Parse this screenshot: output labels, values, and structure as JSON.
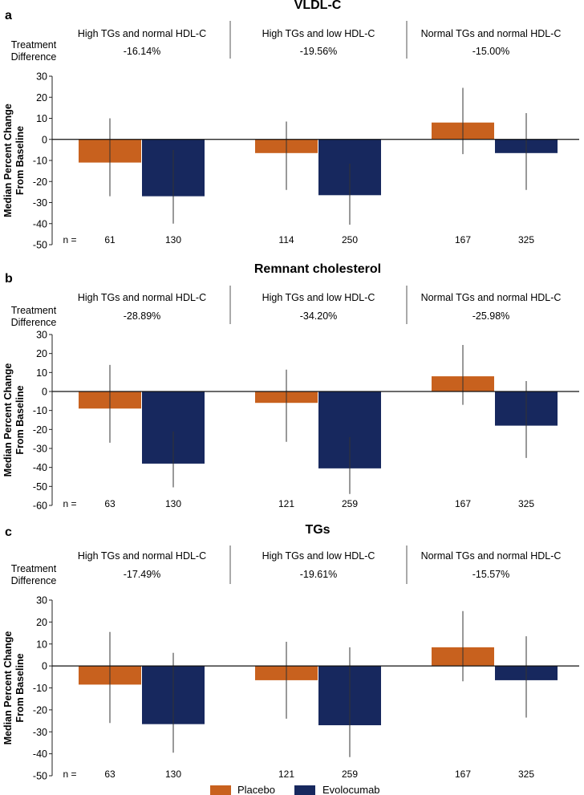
{
  "colors": {
    "placebo": "#C8611E",
    "evolocumab": "#17285E"
  },
  "legend": {
    "placebo": "Placebo",
    "evolocumab": "Evolocumab"
  },
  "labels": {
    "treatment_difference": [
      "Treatment",
      "Difference"
    ],
    "ylabel": [
      "Median Percent Change",
      "From Baseline"
    ],
    "n_prefix": "n ="
  },
  "chart_data": [
    {
      "type": "bar",
      "panel": "a",
      "title": "VLDL-C",
      "categories": [
        "High TGs and normal HDL-C",
        "High TGs and low HDL-C",
        "Normal TGs and normal HDL-C"
      ],
      "treatment_difference": [
        "-16.14%",
        "-19.56%",
        "-15.00%"
      ],
      "series": [
        {
          "name": "Placebo",
          "values": [
            -11,
            -6.5,
            8
          ],
          "error_low": [
            -27,
            -24,
            -7
          ],
          "error_high": [
            10,
            8.5,
            24.5
          ],
          "n": [
            "61",
            "114",
            "167"
          ]
        },
        {
          "name": "Evolocumab",
          "values": [
            -27,
            -26.5,
            -6.5
          ],
          "error_low": [
            -40,
            -40.5,
            -24
          ],
          "error_high": [
            -5,
            -11.5,
            12.5
          ],
          "n": [
            "130",
            "250",
            "325"
          ]
        }
      ],
      "ylim": [
        -50,
        30
      ],
      "yticks": [
        30,
        20,
        10,
        0,
        -10,
        -20,
        -30,
        -40,
        -50
      ]
    },
    {
      "type": "bar",
      "panel": "b",
      "title": "Remnant cholesterol",
      "categories": [
        "High TGs and normal HDL-C",
        "High TGs and low HDL-C",
        "Normal TGs and normal HDL-C"
      ],
      "treatment_difference": [
        "-28.89%",
        "-34.20%",
        "-25.98%"
      ],
      "series": [
        {
          "name": "Placebo",
          "values": [
            -9,
            -6,
            8
          ],
          "error_low": [
            -27,
            -26.5,
            -7
          ],
          "error_high": [
            14,
            11.5,
            24.5
          ],
          "n": [
            "63",
            "121",
            "167"
          ]
        },
        {
          "name": "Evolocumab",
          "values": [
            -38,
            -40.5,
            -18
          ],
          "error_low": [
            -50.5,
            -54,
            -35
          ],
          "error_high": [
            -21,
            -24,
            5.5
          ],
          "n": [
            "130",
            "259",
            "325"
          ]
        }
      ],
      "ylim": [
        -60,
        30
      ],
      "yticks": [
        30,
        20,
        10,
        0,
        -10,
        -20,
        -30,
        -40,
        -50,
        -60
      ]
    },
    {
      "type": "bar",
      "panel": "c",
      "title": "TGs",
      "categories": [
        "High TGs and normal HDL-C",
        "High TGs and low HDL-C",
        "Normal TGs and normal HDL-C"
      ],
      "treatment_difference": [
        "-17.49%",
        "-19.61%",
        "-15.57%"
      ],
      "series": [
        {
          "name": "Placebo",
          "values": [
            -8.5,
            -6.5,
            8.5
          ],
          "error_low": [
            -26,
            -24,
            -7
          ],
          "error_high": [
            15.5,
            11,
            25
          ],
          "n": [
            "63",
            "121",
            "167"
          ]
        },
        {
          "name": "Evolocumab",
          "values": [
            -26.5,
            -27,
            -6.5
          ],
          "error_low": [
            -39.5,
            -41.5,
            -23.5
          ],
          "error_high": [
            6,
            8.5,
            13.5
          ],
          "n": [
            "130",
            "259",
            "325"
          ]
        }
      ],
      "ylim": [
        -50,
        30
      ],
      "yticks": [
        30,
        20,
        10,
        0,
        -10,
        -20,
        -30,
        -40,
        -50
      ]
    }
  ]
}
